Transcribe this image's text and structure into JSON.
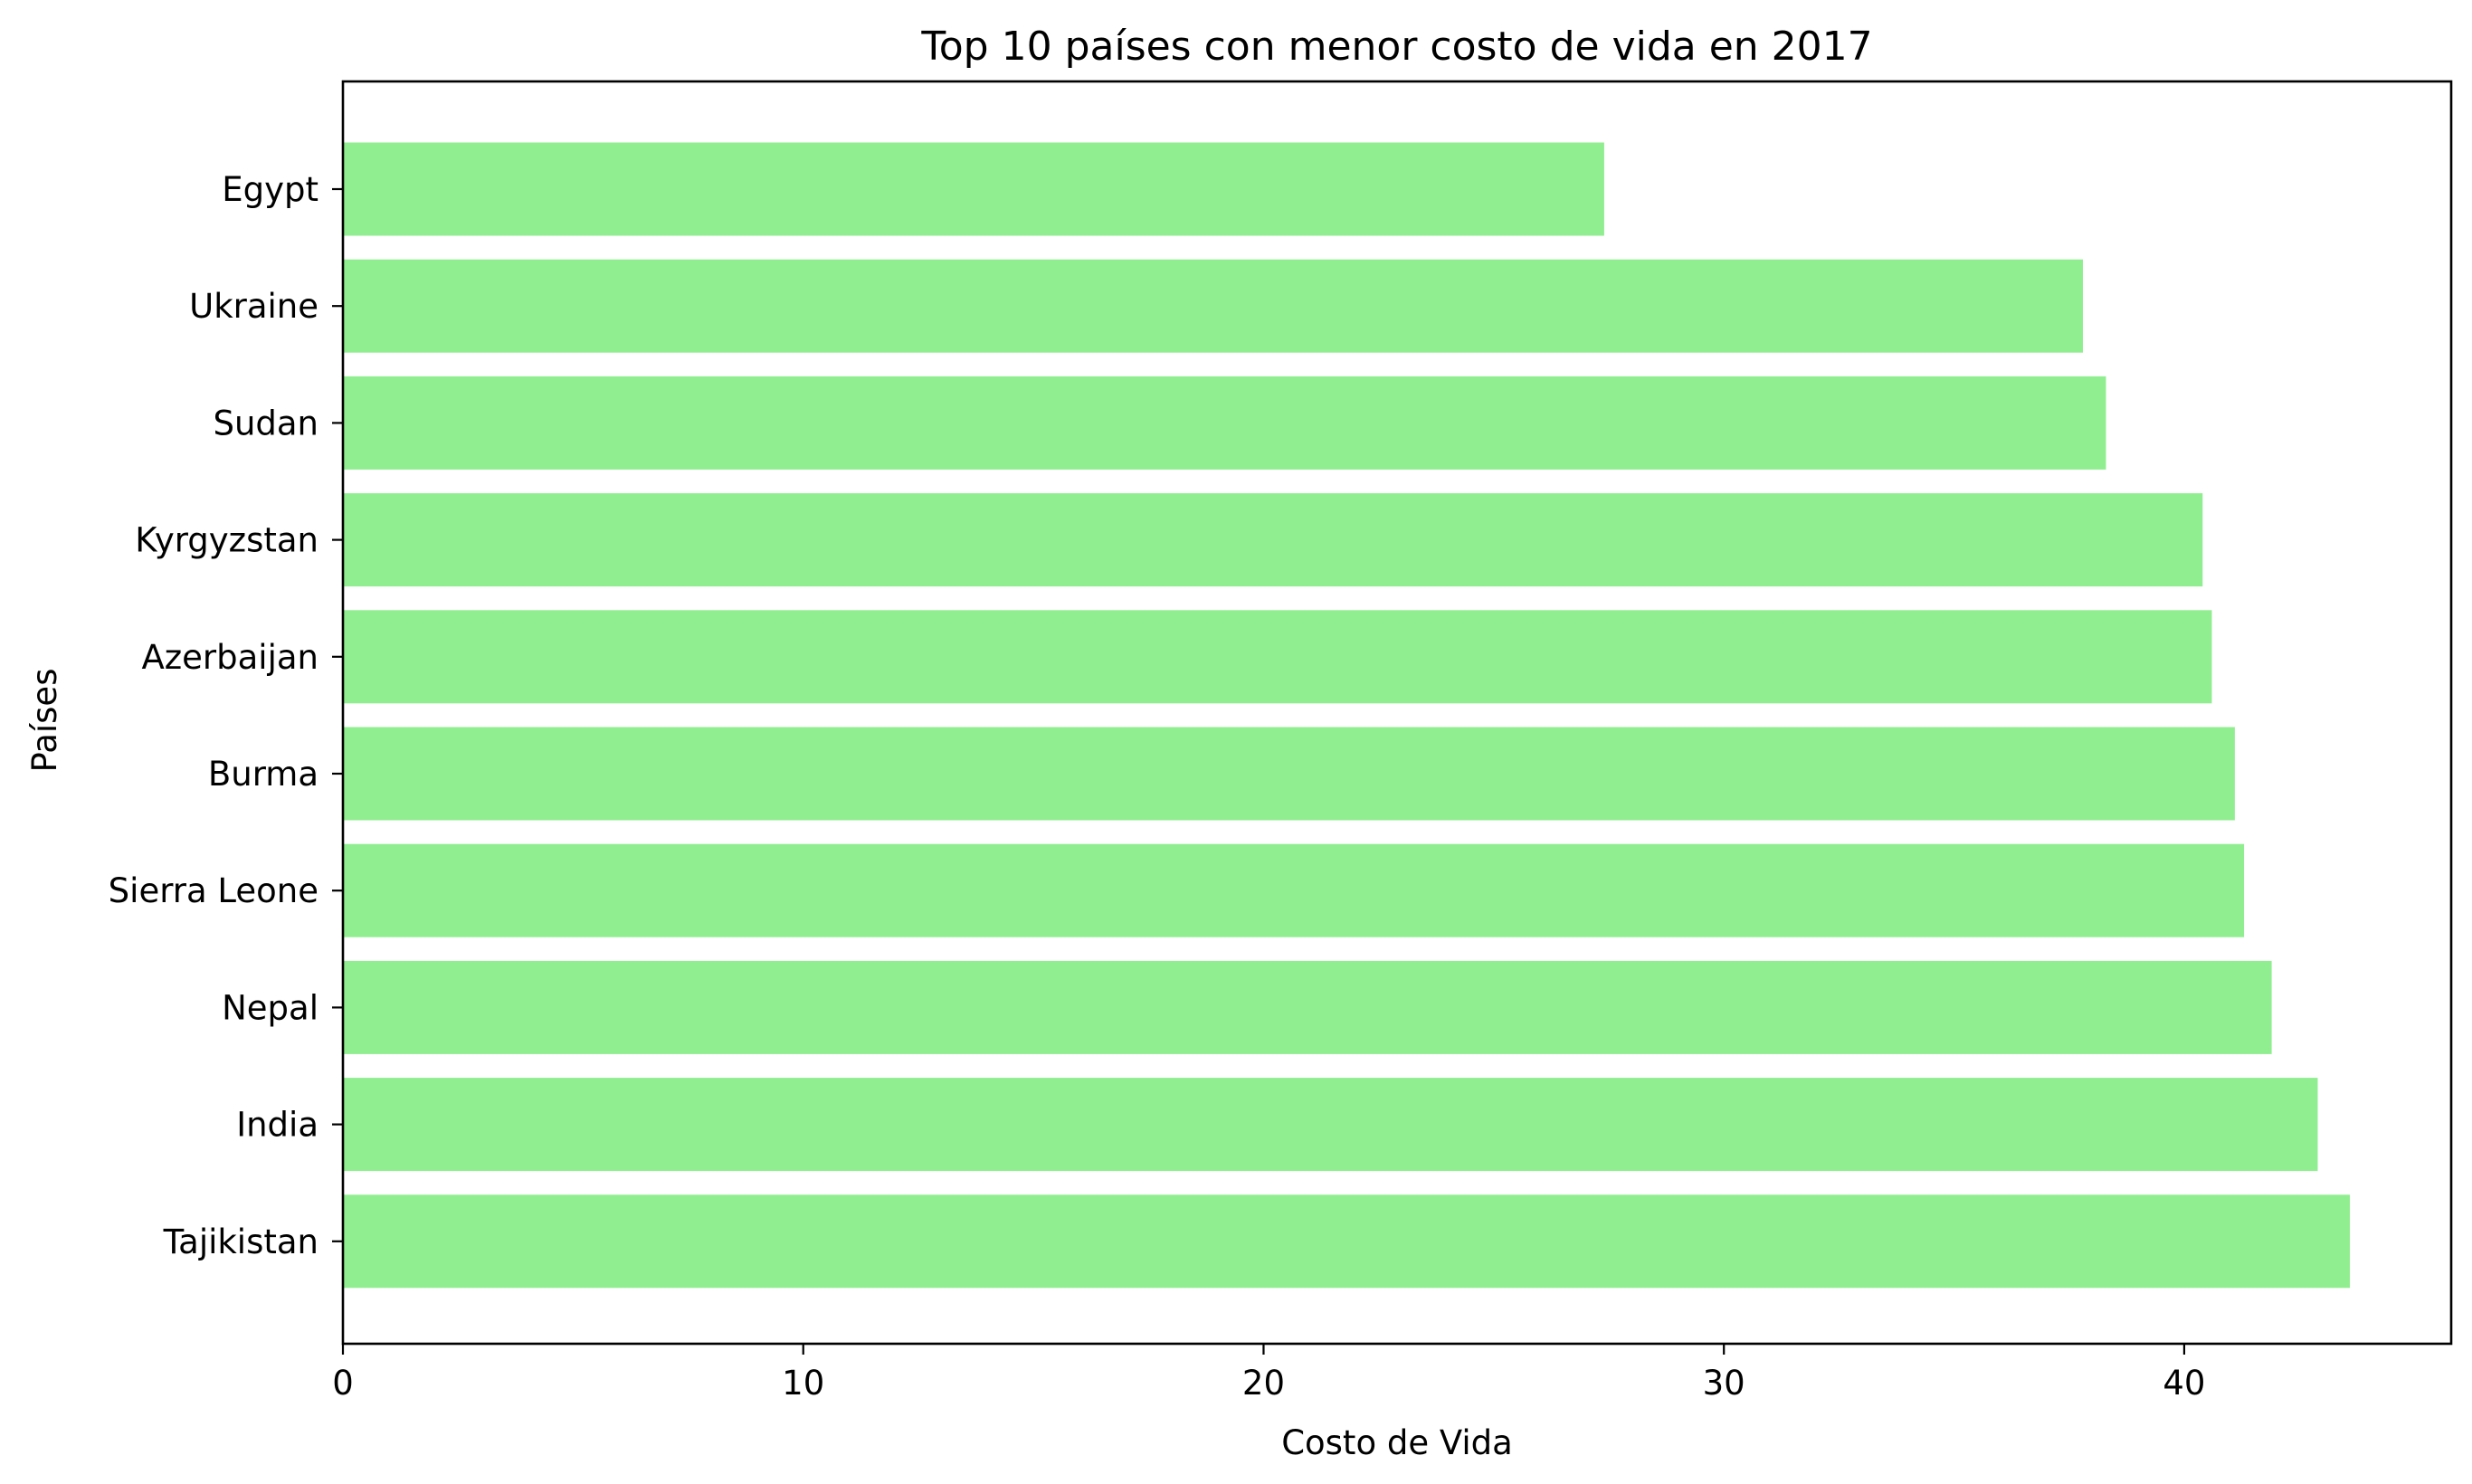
{
  "chart_data": {
    "type": "bar",
    "orientation": "horizontal",
    "title": "Top 10 países con menor costo de vida en 2017",
    "xlabel": "Costo de Vida",
    "ylabel": "Países",
    "categories": [
      "Egypt",
      "Ukraine",
      "Sudan",
      "Kyrgyzstan",
      "Azerbaijan",
      "Burma",
      "Sierra Leone",
      "Nepal",
      "India",
      "Tajikistan"
    ],
    "values": [
      27.4,
      37.8,
      38.3,
      40.4,
      40.6,
      41.1,
      41.3,
      41.9,
      42.9,
      43.6
    ],
    "xlim": [
      0,
      45.8
    ],
    "xticks": [
      0,
      10,
      20,
      30,
      40
    ],
    "xtick_labels": [
      "0",
      "10",
      "20",
      "30",
      "40"
    ],
    "bar_color": "#90ee90",
    "grid": false
  }
}
